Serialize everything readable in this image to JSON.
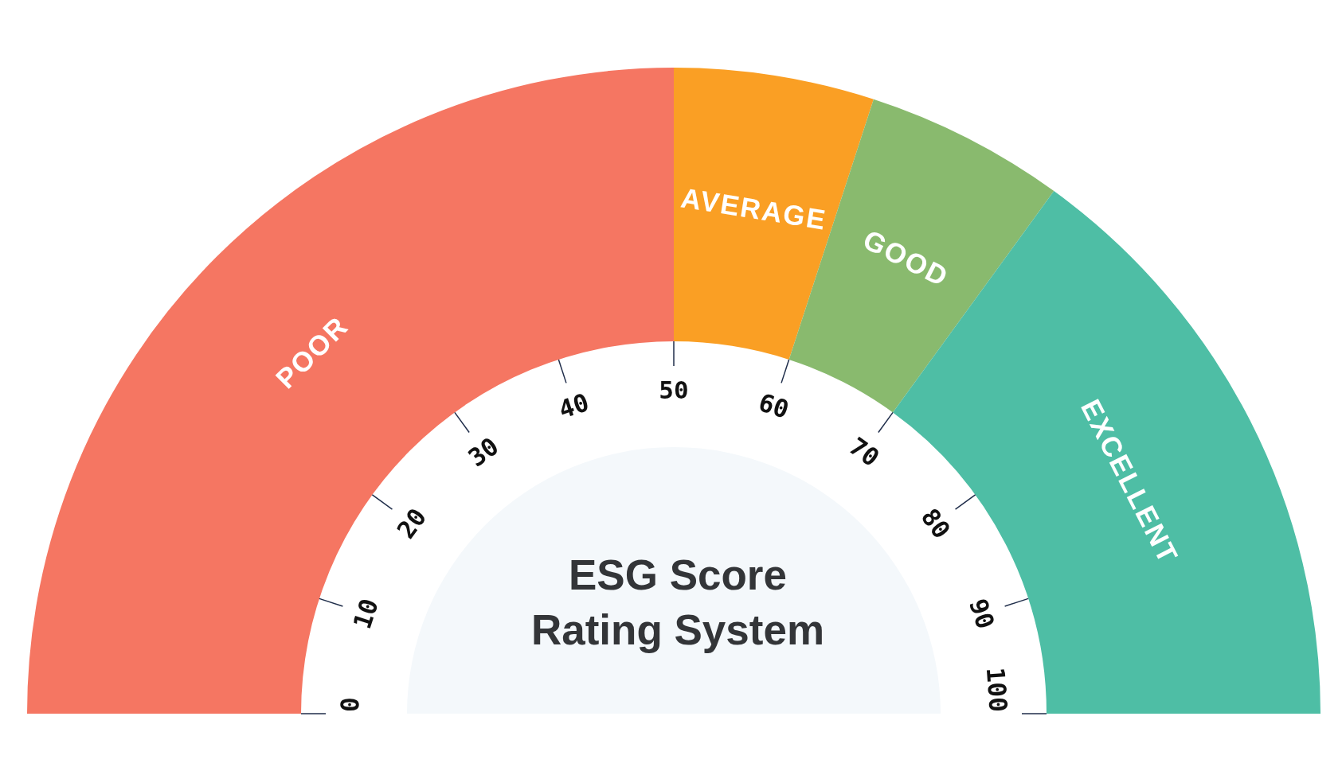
{
  "chart_data": {
    "type": "donut",
    "title": "ESG Score Rating System",
    "categories": [
      "POOR",
      "AVERAGE",
      "GOOD",
      "EXCELLENT"
    ],
    "values": [
      50,
      10,
      10,
      30
    ],
    "colors": [
      "#f57662",
      "#fa9f24",
      "#89ba6e",
      "#4ebea5"
    ],
    "annotations": [
      "0",
      "10",
      "20",
      "30",
      "40",
      "50",
      "60",
      "70",
      "80",
      "90",
      "100"
    ]
  }
}
